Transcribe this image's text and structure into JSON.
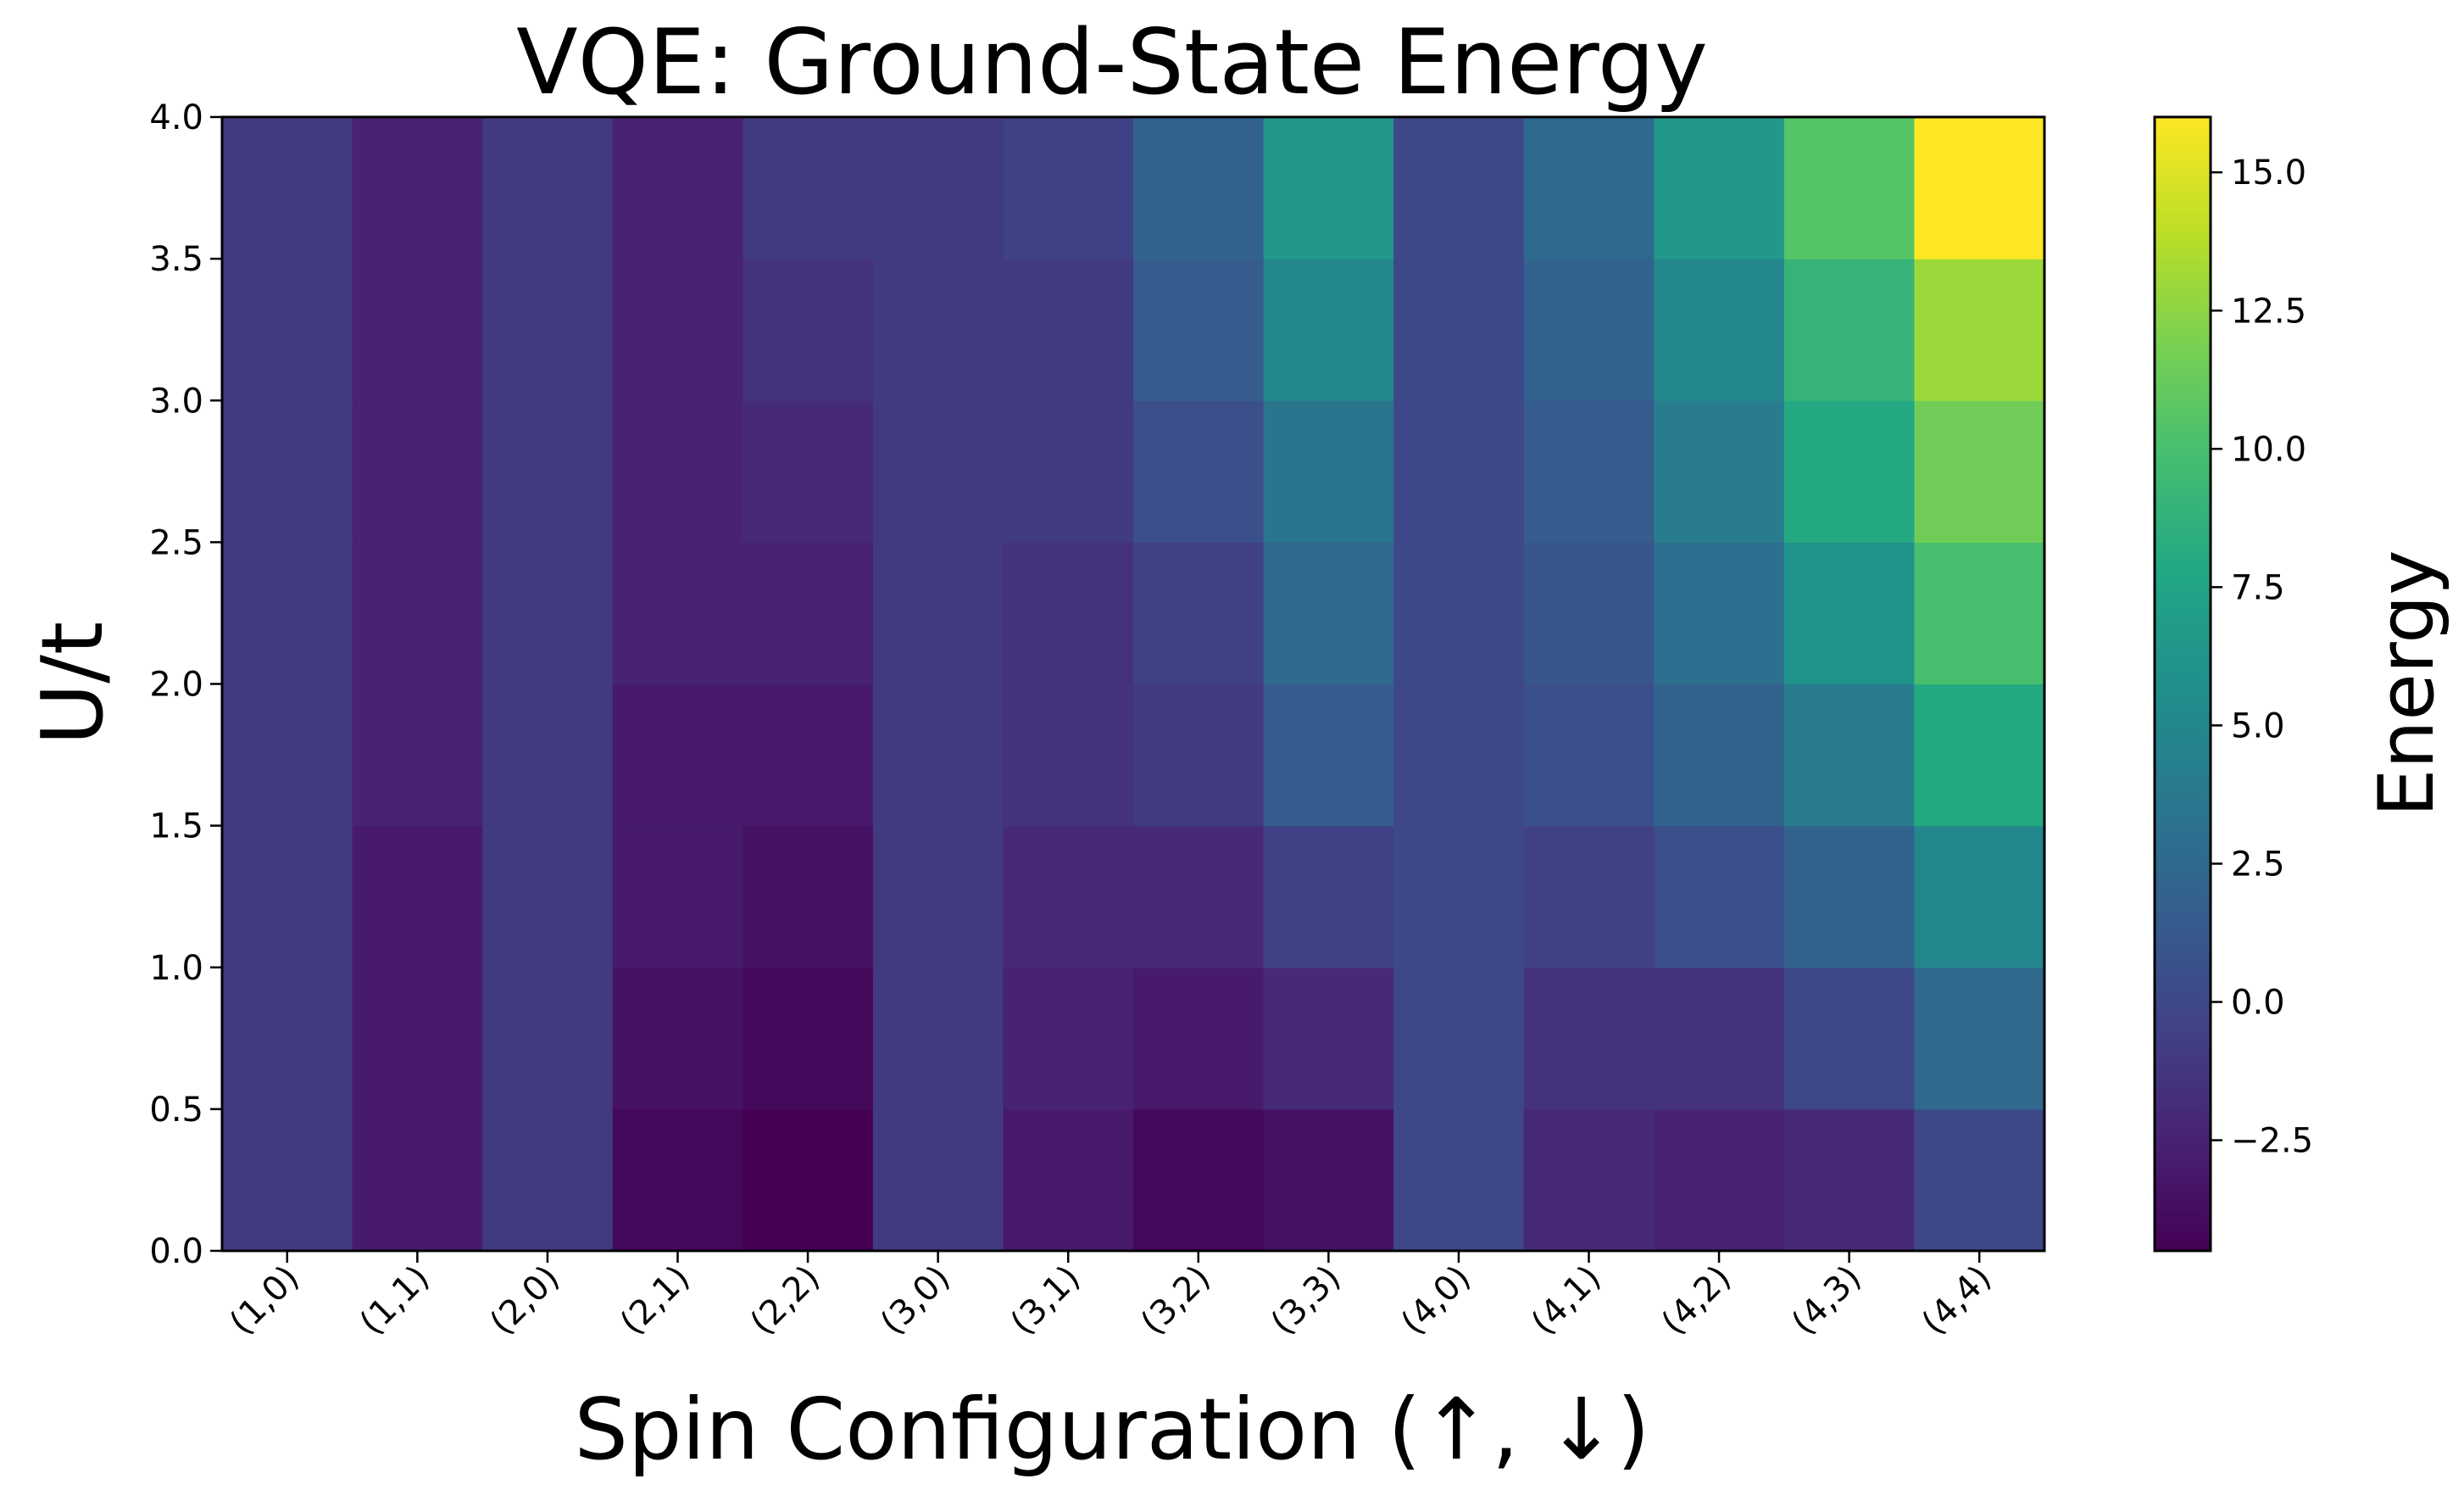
{
  "chart_data": {
    "type": "heatmap",
    "title": "VQE: Ground-State Energy",
    "xlabel": "Spin Configuration (↑, ↓)",
    "ylabel": "U/t",
    "colorbar_label": "Energy",
    "colormap": "viridis",
    "x_categories": [
      "(1,0)",
      "(1,1)",
      "(2,0)",
      "(2,1)",
      "(2,2)",
      "(3,0)",
      "(3,1)",
      "(3,2)",
      "(3,3)",
      "(4,0)",
      "(4,1)",
      "(4,2)",
      "(4,3)",
      "(4,4)"
    ],
    "y_edges": [
      0.0,
      0.5,
      1.0,
      1.5,
      2.0,
      2.5,
      3.0,
      3.5,
      4.0
    ],
    "y_ticks": [
      "0.0",
      "0.5",
      "1.0",
      "1.5",
      "2.0",
      "2.5",
      "3.0",
      "3.5",
      "4.0"
    ],
    "ylim": [
      0.0,
      4.0
    ],
    "vmin": -4.5,
    "vmax": 16.0,
    "colorbar_ticks": [
      "−2.5",
      "0.0",
      "2.5",
      "5.0",
      "7.5",
      "10.0",
      "12.5",
      "15.0"
    ],
    "colorbar_tick_values": [
      -2.5,
      0.0,
      2.5,
      5.0,
      7.5,
      10.0,
      12.5,
      15.0
    ],
    "values_by_row_from_bottom": [
      [
        -1.0,
        -3.0,
        -1.0,
        -4.0,
        -4.5,
        -1.0,
        -3.0,
        -4.0,
        -3.5,
        0.0,
        -2.0,
        -2.5,
        -2.0,
        0.0
      ],
      [
        -1.0,
        -3.0,
        -1.0,
        -3.5,
        -4.0,
        -1.0,
        -2.5,
        -3.0,
        -2.0,
        0.0,
        -1.5,
        -1.5,
        0.0,
        2.5
      ],
      [
        -1.0,
        -3.0,
        -1.0,
        -3.0,
        -3.5,
        -1.0,
        -2.0,
        -2.0,
        -0.5,
        0.0,
        -0.5,
        0.5,
        2.0,
        5.0
      ],
      [
        -1.0,
        -2.5,
        -1.0,
        -3.0,
        -3.0,
        -1.0,
        -1.5,
        -1.0,
        1.5,
        0.0,
        0.5,
        2.0,
        4.0,
        8.0
      ],
      [
        -1.0,
        -2.5,
        -1.0,
        -2.5,
        -2.5,
        -1.0,
        -1.5,
        -0.5,
        2.5,
        0.0,
        1.0,
        3.0,
        6.0,
        10.0
      ],
      [
        -1.0,
        -2.5,
        -1.0,
        -2.5,
        -2.0,
        -1.0,
        -1.0,
        0.5,
        3.5,
        0.0,
        1.5,
        4.0,
        8.0,
        11.5
      ],
      [
        -1.0,
        -2.5,
        -1.0,
        -2.5,
        -1.5,
        -1.0,
        -1.0,
        1.5,
        5.0,
        0.0,
        2.0,
        5.0,
        9.0,
        13.0
      ],
      [
        -1.0,
        -2.5,
        -1.0,
        -2.5,
        -1.0,
        -1.0,
        -0.5,
        2.0,
        6.5,
        0.0,
        2.5,
        6.5,
        10.5,
        16.0
      ]
    ]
  }
}
